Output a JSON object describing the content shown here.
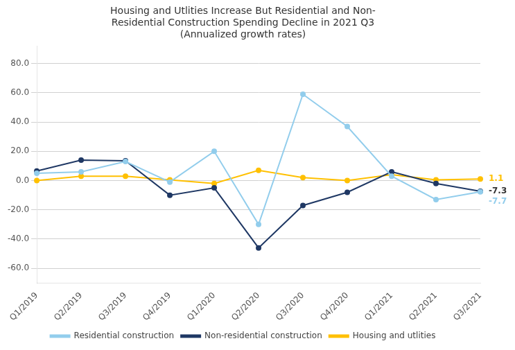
{
  "chart_data": {
    "type": "line",
    "title": "Housing and Utlities Increase But Residential and Non-\nResidential Construction Spending Decline in 2021 Q3\n(Annualized growth rates)",
    "categories": [
      "Q1/2019",
      "Q2/2019",
      "Q3/2019",
      "Q4/2019",
      "Q1/2020",
      "Q2/2020",
      "Q3/2020",
      "Q4/2020",
      "Q1/2021",
      "Q2/2021",
      "Q3/2021"
    ],
    "series": [
      {
        "name": "Residential construction",
        "color": "#92CDEC",
        "values": [
          5.0,
          6.0,
          13.0,
          -1.0,
          20.0,
          -30.0,
          59.0,
          37.0,
          3.0,
          -13.0,
          -7.7
        ]
      },
      {
        "name": "Non-residential construction",
        "color": "#1F3864",
        "values": [
          6.5,
          14.0,
          13.5,
          -10.0,
          -5.0,
          -46.0,
          -17.0,
          -8.0,
          6.0,
          -2.0,
          -7.3
        ]
      },
      {
        "name": "Housing and utlities",
        "color": "#FFC000",
        "values": [
          0.0,
          3.0,
          3.0,
          0.5,
          -2.0,
          7.0,
          2.0,
          0.0,
          4.0,
          0.5,
          1.1
        ]
      }
    ],
    "annotations": [
      {
        "text": "1.1",
        "x": "Q3/2021",
        "y": 1.1,
        "color": "#FFC000"
      },
      {
        "text": "-7.3",
        "x": "Q3/2021",
        "y": -7.3,
        "color": "#333333"
      },
      {
        "text": "-7.7",
        "x": "Q3/2021",
        "y": -7.7,
        "color": "#92CDEC"
      }
    ],
    "ylim": [
      -70,
      92
    ],
    "yticks": [
      {
        "value": -60,
        "label": "-60.0"
      },
      {
        "value": -40,
        "label": "-40.0"
      },
      {
        "value": -20,
        "label": "-20.0"
      },
      {
        "value": 0,
        "label": "0.0"
      },
      {
        "value": 20,
        "label": "20.0"
      },
      {
        "value": 40,
        "label": "40.0"
      },
      {
        "value": 60,
        "label": "60.0"
      },
      {
        "value": 80,
        "label": "80.0"
      }
    ],
    "grid": true,
    "legend": "bottom",
    "marker": "circle"
  }
}
